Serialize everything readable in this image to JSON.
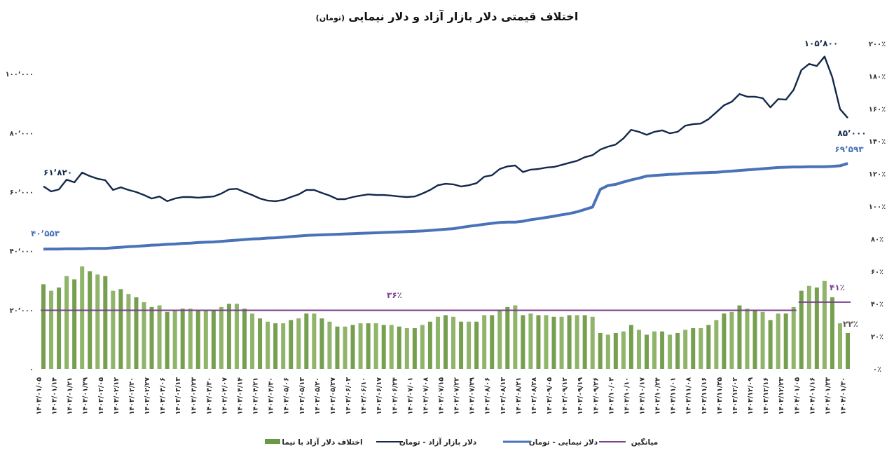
{
  "title": {
    "main": "اختلاف قیمتی دلار بازار آزاد و دلار نیمایی",
    "unit": "(تومان)"
  },
  "colors": {
    "free": "#14284b",
    "nima": "#4a72b8",
    "diff": "#76a04f",
    "average": "#7b3f8f"
  },
  "legend": [
    {
      "label": "اختلاف دلار آزاد با نیما",
      "series": "diff",
      "swatch": "rect"
    },
    {
      "label": "دلار بازار آزاد - تومان",
      "series": "free",
      "swatch": "line"
    },
    {
      "label": "دلار نیمایی - تومان",
      "series": "nima",
      "swatch": "line"
    },
    {
      "label": "میانگین",
      "series": "average",
      "swatch": "line"
    }
  ],
  "annotations": {
    "free_start": "۶۱٬۸۲۰",
    "nima_start": "۴۰٬۵۵۳",
    "free_peak": "۱۰۵٬۸۰۰",
    "free_end": "۸۵٬۰۰۰",
    "nima_end": "۶۹٬۵۹۳",
    "diff_end": "۲۲٪"
  },
  "chart_data": {
    "type": "bar+line",
    "title": "اختلاف قیمتی دلار بازار آزاد و دلار نیمایی (تومان)",
    "left_axis": {
      "range": [
        0,
        110000
      ],
      "ticks": [
        0,
        20000,
        40000,
        60000,
        80000,
        100000
      ],
      "tick_labels": [
        "۰",
        "۲۰٬۰۰۰",
        "۴۰٬۰۰۰",
        "۶۰٬۰۰۰",
        "۸۰٬۰۰۰",
        "۱۰۰٬۰۰۰"
      ]
    },
    "right_axis": {
      "range": [
        0,
        200
      ],
      "unit": "%",
      "ticks": [
        0,
        20,
        40,
        60,
        80,
        100,
        120,
        140,
        160,
        180,
        200
      ],
      "tick_labels": [
        "۰٪",
        "۲۰٪",
        "۴۰٪",
        "۶۰٪",
        "۸۰٪",
        "۱۰۰٪",
        "۱۲۰٪",
        "۱۴۰٪",
        "۱۶۰٪",
        "۱۸۰٪",
        "۲۰۰٪"
      ]
    },
    "grid": false,
    "legend_position": "bottom",
    "x_tick_labels": [
      "۱۴۰۳/۰۱/۰۵",
      "۱۴۰۳/۰۱/۱۴",
      "۱۴۰۳/۰۱/۲۱",
      "۱۴۰۳/۰۱/۲۹",
      "۱۴۰۳/۰۲/۰۵",
      "۱۴۰۳/۰۲/۱۲",
      "۱۴۰۳/۰۲/۲۰",
      "۱۴۰۳/۰۲/۲۷",
      "۱۴۰۳/۰۳/۰۶",
      "۱۴۰۳/۰۳/۱۳",
      "۱۴۰۳/۰۳/۲۳",
      "۱۴۰۳/۰۳/۳۰",
      "۱۴۰۳/۰۴/۰۷",
      "۱۴۰۳/۰۴/۱۴",
      "۱۴۰۳/۰۴/۲۱",
      "۱۴۰۳/۰۴/۳۰",
      "۱۴۰۳/۰۵/۰۶",
      "۱۴۰۳/۰۵/۱۳",
      "۱۴۰۳/۰۵/۲۰",
      "۱۴۰۳/۰۵/۲۷",
      "۱۴۰۳/۰۶/۰۳",
      "۱۴۰۳/۰۶/۱۰",
      "۱۴۰۳/۰۶/۱۷",
      "۱۴۰۳/۰۶/۲۴",
      "۱۴۰۳/۰۷/۰۱",
      "۱۴۰۳/۰۷/۰۸",
      "۱۴۰۳/۰۷/۱۵",
      "۱۴۰۳/۰۷/۲۲",
      "۱۴۰۳/۰۷/۲۹",
      "۱۴۰۳/۰۸/۰۶",
      "۱۴۰۳/۰۸/۱۳",
      "۱۴۰۳/۰۸/۲۱",
      "۱۴۰۳/۰۸/۲۸",
      "۱۴۰۳/۰۹/۰۵",
      "۱۴۰۳/۰۹/۱۲",
      "۱۴۰۳/۰۹/۱۹",
      "۱۴۰۳/۰۹/۲۶",
      "۱۴۰۳/۱۰/۰۳",
      "۱۴۰۳/۱۰/۱۰",
      "۱۴۰۳/۱۰/۱۷",
      "۱۴۰۳/۱۰/۲۴",
      "۱۴۰۳/۱۱/۰۱",
      "۱۴۰۳/۱۱/۰۸",
      "۱۴۰۳/۱۱/۱۶",
      "۱۴۰۳/۱۱/۲۵",
      "۱۴۰۳/۱۲/۰۲",
      "۱۴۰۳/۱۲/۰۹",
      "۱۴۰۳/۱۲/۱۶",
      "۱۴۰۳/۱۲/۲۳",
      "۱۴۰۴/۰۱/۰۵",
      "۱۴۰۴/۰۱/۱۶",
      "۱۴۰۴/۰۱/۲۳",
      "۱۴۰۴/۰۱/۳۰"
    ],
    "series": [
      {
        "name": "دلار بازار آزاد - تومان",
        "key": "free",
        "type": "line",
        "axis": "left",
        "values": [
          61820,
          60100,
          60800,
          64100,
          63200,
          66500,
          65300,
          64400,
          63900,
          60600,
          61500,
          60600,
          59900,
          58900,
          57700,
          58400,
          56800,
          57700,
          58200,
          58200,
          58000,
          58200,
          58400,
          59400,
          60800,
          61000,
          59900,
          58900,
          57700,
          57000,
          56800,
          57200,
          58200,
          59100,
          60600,
          60600,
          59600,
          58700,
          57500,
          57500,
          58200,
          58700,
          59100,
          58900,
          58900,
          58700,
          58400,
          58200,
          58400,
          59400,
          60600,
          62200,
          62700,
          62500,
          61800,
          62200,
          62900,
          65100,
          65600,
          67700,
          68600,
          68900,
          66700,
          67500,
          67700,
          68200,
          68400,
          69100,
          69800,
          70500,
          71700,
          72400,
          74300,
          75300,
          76000,
          78100,
          81000,
          80300,
          79300,
          80300,
          80800,
          79800,
          80300,
          82400,
          82900,
          83100,
          84600,
          86900,
          89300,
          90500,
          93100,
          92200,
          92200,
          91700,
          88600,
          91400,
          91200,
          94500,
          101200,
          103300,
          102600,
          105800,
          98800,
          88000,
          85000
        ]
      },
      {
        "name": "دلار نیمایی - تومان",
        "key": "nima",
        "type": "line",
        "axis": "left",
        "values": [
          40553,
          40600,
          40600,
          40700,
          40700,
          40700,
          40800,
          40800,
          40800,
          41000,
          41200,
          41400,
          41500,
          41700,
          41900,
          42000,
          42200,
          42300,
          42500,
          42600,
          42800,
          42900,
          43000,
          43200,
          43400,
          43600,
          43800,
          44000,
          44100,
          44300,
          44400,
          44600,
          44800,
          45000,
          45200,
          45300,
          45400,
          45500,
          45600,
          45700,
          45800,
          45900,
          46000,
          46100,
          46200,
          46300,
          46400,
          46500,
          46600,
          46700,
          46900,
          47100,
          47300,
          47500,
          47900,
          48300,
          48600,
          49000,
          49300,
          49600,
          49700,
          49700,
          50000,
          50500,
          50900,
          51300,
          51700,
          52200,
          52600,
          53200,
          54000,
          54800,
          60800,
          62100,
          62500,
          63300,
          64000,
          64600,
          65300,
          65500,
          65700,
          65900,
          66000,
          66200,
          66300,
          66400,
          66500,
          66600,
          66800,
          67000,
          67200,
          67400,
          67600,
          67800,
          68000,
          68200,
          68300,
          68400,
          68400,
          68500,
          68500,
          68500,
          68600,
          68800,
          69593
        ]
      },
      {
        "name": "اختلاف دلار آزاد با نیما",
        "key": "diff",
        "type": "bar",
        "axis": "right",
        "values": [
          52,
          48,
          50,
          57,
          55,
          63,
          60,
          58,
          57,
          48,
          49,
          46,
          44,
          41,
          38,
          39,
          35,
          36,
          37,
          37,
          36,
          36,
          36,
          38,
          40,
          40,
          37,
          34,
          31,
          29,
          28,
          28,
          30,
          31,
          34,
          34,
          31,
          29,
          26,
          26,
          27,
          28,
          28,
          28,
          27,
          27,
          26,
          25,
          25,
          27,
          29,
          32,
          33,
          32,
          29,
          29,
          29,
          33,
          33,
          36,
          38,
          39,
          33,
          34,
          33,
          33,
          32,
          32,
          33,
          33,
          33,
          32,
          22,
          21,
          22,
          23,
          27,
          24,
          21,
          23,
          23,
          21,
          22,
          24,
          25,
          25,
          27,
          30,
          34,
          35,
          39,
          37,
          36,
          35,
          30,
          34,
          34,
          38,
          48,
          51,
          50,
          54,
          44,
          28,
          22
        ]
      },
      {
        "name": "میانگین",
        "key": "average",
        "type": "step",
        "axis": "right",
        "segments": [
          {
            "value": 36,
            "label": "۳۶٪",
            "start_index": 0,
            "end_index": 97
          },
          {
            "value": 41,
            "label": "۴۱٪",
            "start_index": 98,
            "end_index": 104
          }
        ]
      }
    ]
  }
}
